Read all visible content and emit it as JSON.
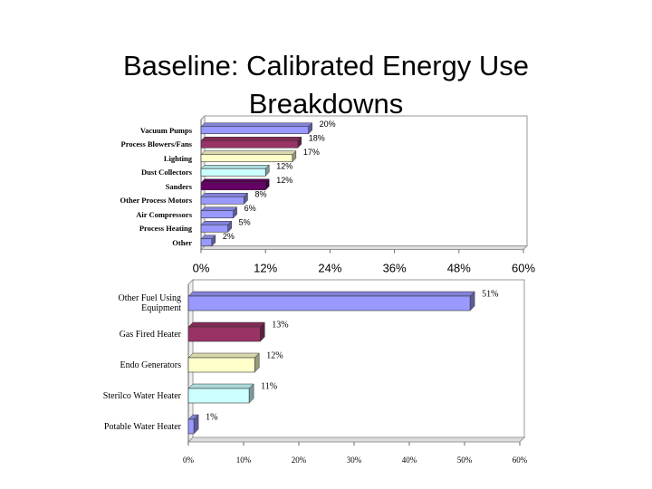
{
  "slide": {
    "title": "Baseline: Calibrated Energy Use Breakdowns"
  },
  "chart_data": [
    {
      "type": "bar",
      "orientation": "horizontal",
      "categories": [
        "Vacuum Pumps",
        "Process Blowers/Fans",
        "Lighting",
        "Dust Collectors",
        "Sanders",
        "Other Process Motors",
        "Air Compressors",
        "Process Heating",
        "Other"
      ],
      "values": [
        20,
        18,
        17,
        12,
        12,
        8,
        6,
        5,
        2
      ],
      "value_labels": [
        "20%",
        "18%",
        "17%",
        "12%",
        "12%",
        "8%",
        "6%",
        "5%",
        "2%"
      ],
      "colors": [
        "#9999ff",
        "#993366",
        "#ffffcc",
        "#ccffff",
        "#660066",
        "#9999ff",
        "#9999ff",
        "#9999ff",
        "#9999ff"
      ],
      "xlim": [
        0,
        60
      ],
      "xticks": [
        {
          "value": 0,
          "label": "0%"
        },
        {
          "value": 12,
          "label": "12%"
        },
        {
          "value": 24,
          "label": "24%"
        },
        {
          "value": 36,
          "label": "36%"
        },
        {
          "value": 48,
          "label": "48%"
        },
        {
          "value": 60,
          "label": "60%"
        }
      ]
    },
    {
      "type": "bar",
      "orientation": "horizontal",
      "categories": [
        "Other Fuel Using Equipment",
        "Gas Fired Heater",
        "Endo Generators",
        "Sterilco Water Heater",
        "Potable Water Heater"
      ],
      "values": [
        51,
        13,
        12,
        11,
        1
      ],
      "value_labels": [
        "51%",
        "13%",
        "12%",
        "11%",
        "1%"
      ],
      "colors": [
        "#9999ff",
        "#993366",
        "#ffffcc",
        "#ccffff",
        "#9999ff"
      ],
      "xlim": [
        0,
        60
      ],
      "xticks": [
        {
          "value": 0,
          "label": "0%"
        },
        {
          "value": 10,
          "label": "10%"
        },
        {
          "value": 20,
          "label": "20%"
        },
        {
          "value": 30,
          "label": "30%"
        },
        {
          "value": 40,
          "label": "40%"
        },
        {
          "value": 50,
          "label": "50%"
        },
        {
          "value": 60,
          "label": "60%"
        }
      ]
    }
  ]
}
